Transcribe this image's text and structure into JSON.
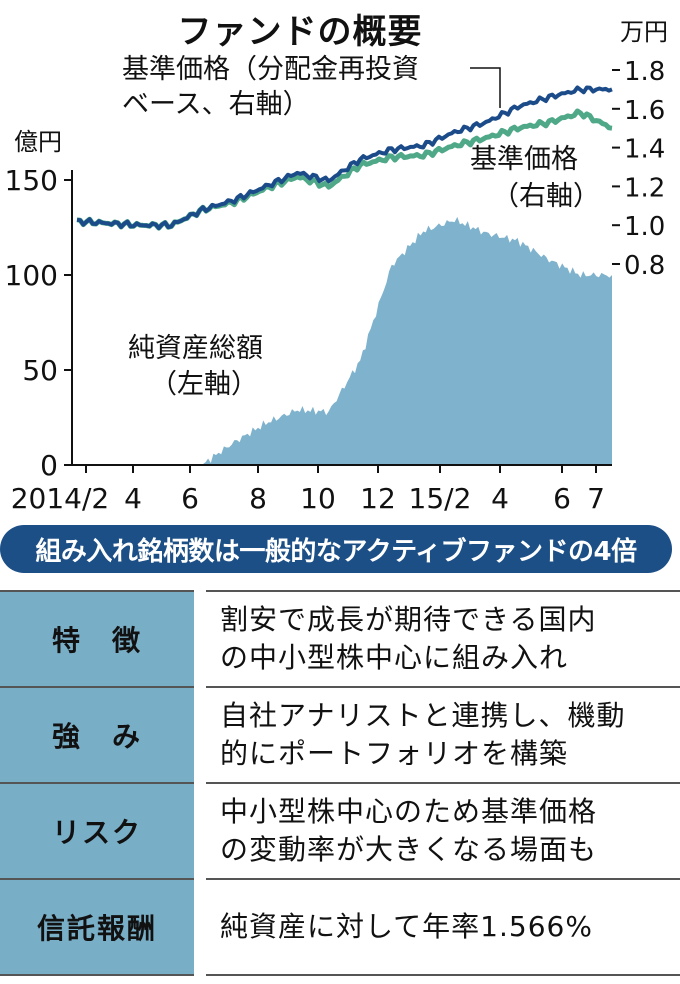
{
  "title": "ファンドの概要",
  "chart_data": {
    "type": "area+line",
    "x_ticks": [
      "2014/2",
      "4",
      "6",
      "8",
      "10",
      "12",
      "15/2",
      "4",
      "6",
      "7"
    ],
    "left_axis": {
      "unit": "億円",
      "ticks": [
        0,
        50,
        100,
        150
      ],
      "range": [
        0,
        150
      ]
    },
    "right_axis": {
      "unit": "万円",
      "ticks": [
        "0.8",
        "1.0",
        "1.2",
        "1.4",
        "1.6",
        "1.8"
      ],
      "range": [
        0.8,
        1.8
      ]
    },
    "series": [
      {
        "name_lines": [
          "純資産総額",
          "（左軸）"
        ],
        "type": "area",
        "axis": "left",
        "color": "#7fb3cd",
        "x": [
          "2014-02",
          "2014-03",
          "2014-04",
          "2014-05",
          "2014-06",
          "2014-07",
          "2014-08",
          "2014-09",
          "2014-10",
          "2014-11",
          "2014-12",
          "2015-01",
          "2015-02",
          "2015-03",
          "2015-04",
          "2015-05",
          "2015-06",
          "2015-07"
        ],
        "values": [
          0,
          0,
          0,
          0,
          0.5,
          12,
          22,
          29,
          28,
          55,
          105,
          123,
          129,
          122,
          118,
          108,
          100,
          100
        ]
      },
      {
        "name_lines": [
          "基準価格（分配金再投資",
          "ベース、右軸）"
        ],
        "type": "line",
        "axis": "right",
        "color": "#1c4b8a",
        "x": [
          "2014-02",
          "2014-03",
          "2014-04",
          "2014-05",
          "2014-06",
          "2014-07",
          "2014-08",
          "2014-09",
          "2014-10",
          "2014-11",
          "2014-12",
          "2015-01",
          "2015-02",
          "2015-03",
          "2015-04",
          "2015-05",
          "2015-06",
          "2015-07"
        ],
        "values": [
          1.02,
          1.01,
          1.0,
          1.0,
          1.08,
          1.13,
          1.2,
          1.27,
          1.23,
          1.34,
          1.39,
          1.41,
          1.48,
          1.53,
          1.61,
          1.66,
          1.7,
          1.7
        ]
      },
      {
        "name_lines": [
          "基準価格",
          "（右軸）"
        ],
        "type": "line",
        "axis": "right",
        "color": "#4fa888",
        "x": [
          "2014-02",
          "2014-03",
          "2014-04",
          "2014-05",
          "2014-06",
          "2014-07",
          "2014-08",
          "2014-09",
          "2014-10",
          "2014-11",
          "2014-12",
          "2015-01",
          "2015-02",
          "2015-03",
          "2015-04",
          "2015-05",
          "2015-06",
          "2015-07"
        ],
        "values": [
          1.02,
          1.01,
          1.0,
          1.0,
          1.08,
          1.12,
          1.19,
          1.25,
          1.2,
          1.31,
          1.35,
          1.36,
          1.41,
          1.45,
          1.5,
          1.53,
          1.58,
          1.5
        ]
      }
    ]
  },
  "banner": "組み入れ銘柄数は一般的なアクティブファンドの4倍",
  "table": [
    {
      "label": "特　徴",
      "lines": [
        "割安で成長が期待できる国内",
        "の中小型株中心に組み入れ"
      ]
    },
    {
      "label": "強　み",
      "lines": [
        "自社アナリストと連携し、機動",
        "的にポートフォリオを構築"
      ]
    },
    {
      "label": "リスク",
      "lines": [
        "中小型株中心のため基準価格",
        "の変動率が大きくなる場面も"
      ]
    },
    {
      "label": "信託報酬",
      "lines": [
        "純資産に対して年率1.566%"
      ]
    }
  ],
  "colors": {
    "banner": "#1c4f86",
    "label_bg": "#79aec7"
  }
}
